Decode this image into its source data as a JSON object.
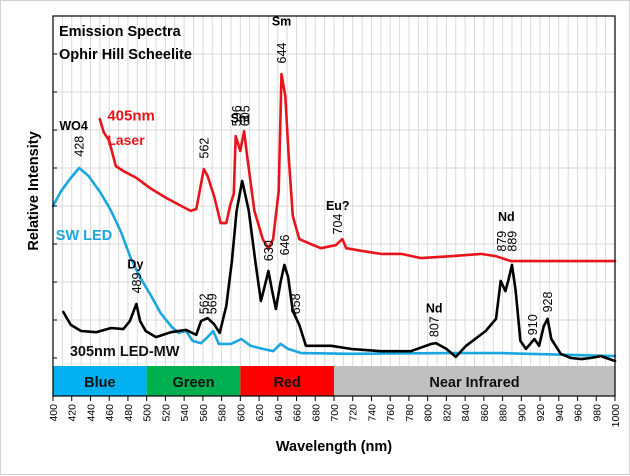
{
  "chart_data": {
    "type": "line",
    "title": "Emission Spectra",
    "subtitle": "Ophir Hill Scheelite",
    "xlabel": "Wavelength (nm)",
    "ylabel": "Relative Intensity",
    "xlim": [
      400,
      1000
    ],
    "ylim": [
      0,
      9
    ],
    "x_ticks": [
      400,
      420,
      440,
      460,
      480,
      500,
      520,
      540,
      560,
      580,
      600,
      620,
      640,
      660,
      680,
      700,
      720,
      740,
      760,
      780,
      800,
      820,
      840,
      860,
      880,
      900,
      920,
      940,
      960,
      980,
      1000
    ],
    "y_tick_labels_shown": false,
    "grid": true,
    "bands": [
      {
        "label": "Blue",
        "from": 400,
        "to": 500,
        "color": "#00b0f0"
      },
      {
        "label": "Green",
        "from": 500,
        "to": 600,
        "color": "#00b050"
      },
      {
        "label": "Red",
        "from": 600,
        "to": 700,
        "color": "#ff0000"
      },
      {
        "label": "Near Infrared",
        "from": 700,
        "to": 1000,
        "color": "#c0c0c0"
      }
    ],
    "series": [
      {
        "name": "405nm Laser",
        "label_lines": [
          "405nm",
          "Laser"
        ],
        "color": "#e8141b",
        "points": [
          [
            450,
            6.29
          ],
          [
            454,
            5.95
          ],
          [
            460,
            5.71
          ],
          [
            467,
            5.05
          ],
          [
            475,
            4.92
          ],
          [
            489,
            4.74
          ],
          [
            505,
            4.45
          ],
          [
            521,
            4.21
          ],
          [
            537,
            4.0
          ],
          [
            547,
            3.87
          ],
          [
            553,
            3.92
          ],
          [
            561,
            4.97
          ],
          [
            565,
            4.79
          ],
          [
            572,
            4.26
          ],
          [
            579,
            3.55
          ],
          [
            585,
            3.55
          ],
          [
            589,
            4.0
          ],
          [
            593,
            4.32
          ],
          [
            595,
            5.84
          ],
          [
            600,
            5.45
          ],
          [
            604,
            5.97
          ],
          [
            608,
            5.18
          ],
          [
            615,
            3.87
          ],
          [
            624,
            3.13
          ],
          [
            630,
            2.87
          ],
          [
            635,
            3.13
          ],
          [
            641,
            4.39
          ],
          [
            644,
            7.47
          ],
          [
            648,
            6.89
          ],
          [
            652,
            5.18
          ],
          [
            656,
            3.74
          ],
          [
            663,
            3.13
          ],
          [
            675,
            3.0
          ],
          [
            686,
            2.89
          ],
          [
            702,
            2.97
          ],
          [
            709,
            3.13
          ],
          [
            713,
            2.89
          ],
          [
            729,
            2.82
          ],
          [
            750,
            2.74
          ],
          [
            772,
            2.74
          ],
          [
            793,
            2.63
          ],
          [
            825,
            2.68
          ],
          [
            857,
            2.74
          ],
          [
            873,
            2.68
          ],
          [
            889,
            2.55
          ],
          [
            921,
            2.55
          ],
          [
            953,
            2.55
          ],
          [
            1000,
            2.55
          ]
        ]
      },
      {
        "name": "SW LED",
        "label_lines": [
          "SW LED"
        ],
        "color": "#1aa7e0",
        "points": [
          [
            400,
            4.0
          ],
          [
            408.5,
            4.39
          ],
          [
            419,
            4.74
          ],
          [
            428,
            5.0
          ],
          [
            438,
            4.79
          ],
          [
            451,
            4.34
          ],
          [
            462,
            3.87
          ],
          [
            473,
            3.29
          ],
          [
            483,
            2.63
          ],
          [
            494,
            2.08
          ],
          [
            505,
            1.63
          ],
          [
            515,
            1.18
          ],
          [
            526,
            0.84
          ],
          [
            534,
            0.66
          ],
          [
            542,
            0.71
          ],
          [
            549,
            0.45
          ],
          [
            558,
            0.39
          ],
          [
            565,
            0.55
          ],
          [
            571,
            0.71
          ],
          [
            577,
            0.37
          ],
          [
            590,
            0.37
          ],
          [
            601,
            0.5
          ],
          [
            611,
            0.32
          ],
          [
            624,
            0.24
          ],
          [
            635,
            0.18
          ],
          [
            643,
            0.37
          ],
          [
            651,
            0.24
          ],
          [
            665,
            0.13
          ],
          [
            718,
            0.11
          ],
          [
            825,
            0.13
          ],
          [
            878,
            0.13
          ],
          [
            1000,
            0.05
          ]
        ]
      },
      {
        "name": "305nm LED-MW",
        "label_lines": [
          "305nm LED-MW"
        ],
        "color": "#000000",
        "points": [
          [
            411,
            1.21
          ],
          [
            419,
            0.87
          ],
          [
            430,
            0.71
          ],
          [
            446,
            0.68
          ],
          [
            462,
            0.79
          ],
          [
            475,
            0.76
          ],
          [
            482,
            0.97
          ],
          [
            489,
            1.42
          ],
          [
            493,
            0.97
          ],
          [
            499,
            0.71
          ],
          [
            510,
            0.55
          ],
          [
            526,
            0.68
          ],
          [
            542,
            0.74
          ],
          [
            553,
            0.61
          ],
          [
            558,
            0.97
          ],
          [
            565,
            1.05
          ],
          [
            572,
            0.89
          ],
          [
            578,
            0.66
          ],
          [
            585,
            1.37
          ],
          [
            591,
            2.55
          ],
          [
            596,
            3.87
          ],
          [
            602,
            4.66
          ],
          [
            609,
            3.87
          ],
          [
            616,
            2.55
          ],
          [
            622,
            1.5
          ],
          [
            626,
            1.89
          ],
          [
            630,
            2.29
          ],
          [
            634,
            1.76
          ],
          [
            638,
            1.29
          ],
          [
            643,
            2.0
          ],
          [
            647,
            2.45
          ],
          [
            651,
            2.13
          ],
          [
            656,
            1.24
          ],
          [
            663,
            0.87
          ],
          [
            670,
            0.32
          ],
          [
            681,
            0.32
          ],
          [
            697,
            0.32
          ],
          [
            718,
            0.24
          ],
          [
            750,
            0.18
          ],
          [
            782,
            0.18
          ],
          [
            804,
            0.37
          ],
          [
            809,
            0.39
          ],
          [
            820,
            0.24
          ],
          [
            830,
            0.03
          ],
          [
            841,
            0.32
          ],
          [
            862,
            0.71
          ],
          [
            873,
            1.03
          ],
          [
            878,
            2.03
          ],
          [
            883,
            1.76
          ],
          [
            886,
            2.03
          ],
          [
            890,
            2.45
          ],
          [
            894,
            1.76
          ],
          [
            899,
            0.45
          ],
          [
            905,
            0.24
          ],
          [
            914,
            0.5
          ],
          [
            919,
            0.32
          ],
          [
            924,
            0.84
          ],
          [
            928,
            1.03
          ],
          [
            932,
            0.5
          ],
          [
            942,
            0.11
          ],
          [
            953,
            0.0
          ],
          [
            964,
            -0.03
          ],
          [
            974,
            0.0
          ],
          [
            985,
            0.05
          ],
          [
            1000,
            -0.08
          ]
        ]
      }
    ],
    "annotations": [
      {
        "text": "WO4",
        "x": 422,
        "y": 6.0,
        "rotate": false,
        "color": "#000000"
      },
      {
        "text": "428",
        "x": 428,
        "y": 5.3,
        "rotate": true,
        "color": "#000000"
      },
      {
        "text": "Dy",
        "x": 488,
        "y": 2.35,
        "rotate": false,
        "color": "#000000"
      },
      {
        "text": "489",
        "x": 489,
        "y": 1.7,
        "rotate": true,
        "color": "#000000"
      },
      {
        "text": "562",
        "x": 561,
        "y": 5.25,
        "rotate": true,
        "color": "#000000"
      },
      {
        "text": "Sm",
        "x": 600,
        "y": 6.2,
        "rotate": false,
        "color": "#000000"
      },
      {
        "text": "596",
        "x": 596,
        "y": 6.1,
        "rotate": true,
        "color": "#000000"
      },
      {
        "text": "605",
        "x": 605,
        "y": 6.1,
        "rotate": true,
        "color": "#000000"
      },
      {
        "text": "Sm",
        "x": 644,
        "y": 8.75,
        "rotate": false,
        "color": "#000000"
      },
      {
        "text": "644",
        "x": 644,
        "y": 7.75,
        "rotate": true,
        "color": "#000000"
      },
      {
        "text": "Eu?",
        "x": 704,
        "y": 3.9,
        "rotate": false,
        "color": "#000000"
      },
      {
        "text": "704",
        "x": 704,
        "y": 3.25,
        "rotate": true,
        "color": "#000000"
      },
      {
        "text": "562",
        "x": 561,
        "y": 1.15,
        "rotate": true,
        "color": "#000000"
      },
      {
        "text": "569",
        "x": 570,
        "y": 1.15,
        "rotate": true,
        "color": "#000000"
      },
      {
        "text": "630",
        "x": 630,
        "y": 2.55,
        "rotate": true,
        "color": "#000000"
      },
      {
        "text": "646",
        "x": 647,
        "y": 2.7,
        "rotate": true,
        "color": "#000000"
      },
      {
        "text": "658",
        "x": 659,
        "y": 1.15,
        "rotate": true,
        "color": "#000000"
      },
      {
        "text": "Nd",
        "x": 807,
        "y": 1.2,
        "rotate": false,
        "color": "#000000"
      },
      {
        "text": "807",
        "x": 807,
        "y": 0.55,
        "rotate": true,
        "color": "#000000"
      },
      {
        "text": "Nd",
        "x": 884,
        "y": 3.6,
        "rotate": false,
        "color": "#000000"
      },
      {
        "text": "879",
        "x": 879,
        "y": 2.8,
        "rotate": true,
        "color": "#000000"
      },
      {
        "text": "889",
        "x": 890,
        "y": 2.8,
        "rotate": true,
        "color": "#000000"
      },
      {
        "text": "910",
        "x": 912,
        "y": 0.6,
        "rotate": true,
        "color": "#000000"
      },
      {
        "text": "928",
        "x": 928,
        "y": 1.2,
        "rotate": true,
        "color": "#000000"
      }
    ]
  }
}
